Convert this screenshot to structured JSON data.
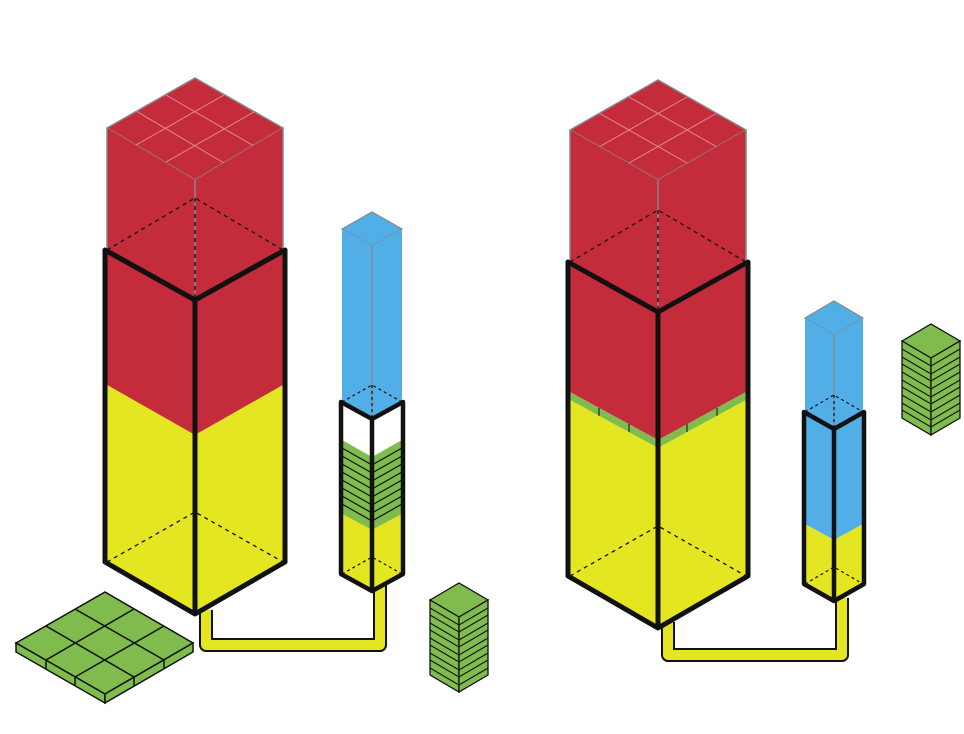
{
  "colors": {
    "red": "#c42b3b",
    "yellow": "#e3e621",
    "blue": "#52aee6",
    "green": "#7fbb4d",
    "outline": "#111111",
    "thin_outline": "#888888"
  },
  "left_system": {
    "tall_column_layers": [
      "yellow",
      "red"
    ],
    "narrow_column_layers": [
      "yellow",
      "green",
      "blue"
    ],
    "green_block_stack_layers": 10,
    "green_flat_tile_grid": "3x3"
  },
  "right_system": {
    "tall_column_layers": [
      "yellow",
      "green",
      "red"
    ],
    "narrow_column_layers": [
      "yellow",
      "blue"
    ],
    "green_block_stack_layers": 10
  }
}
